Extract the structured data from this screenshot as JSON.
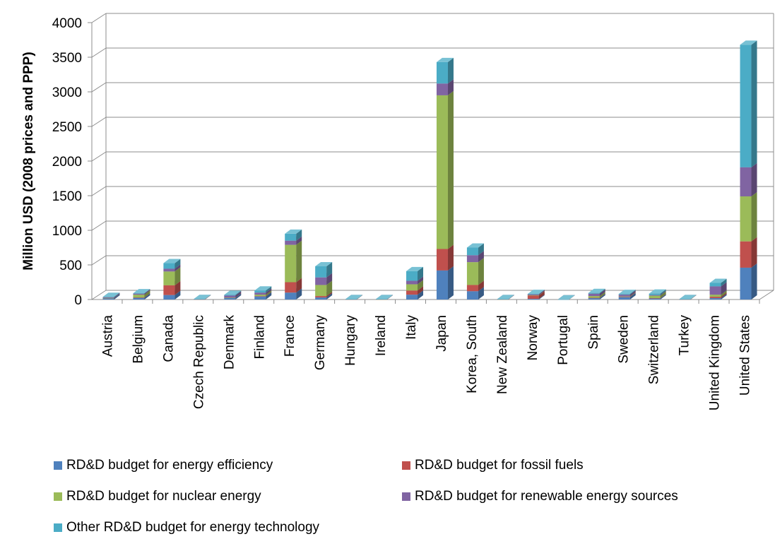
{
  "chart_data": {
    "type": "bar",
    "stacked": true,
    "three_d": true,
    "title": "",
    "xlabel": "",
    "ylabel": "Million USD (2008 prices and PPP)",
    "ylim": [
      0,
      4000
    ],
    "yticks": [
      0,
      500,
      1000,
      1500,
      2000,
      2500,
      3000,
      3500,
      4000
    ],
    "grid": "horizontal",
    "legend_position": "bottom",
    "categories": [
      "Austria",
      "Belgium",
      "Canada",
      "Czech Republic",
      "Denmark",
      "Finland",
      "France",
      "Germany",
      "Hungary",
      "Ireland",
      "Italy",
      "Japan",
      "Korea, South",
      "New Zealand",
      "Norway",
      "Portugal",
      "Spain",
      "Sweden",
      "Switzerland",
      "Turkey",
      "United Kingdom",
      "United States"
    ],
    "series": [
      {
        "name": "RD&D budget for energy efficiency",
        "color": "#4F81BD",
        "values": [
          20,
          25,
          65,
          3,
          25,
          45,
          100,
          30,
          3,
          4,
          70,
          420,
          120,
          3,
          10,
          1,
          20,
          35,
          15,
          3,
          20,
          460
        ]
      },
      {
        "name": "RD&D budget for fossil fuels",
        "color": "#C0504D",
        "values": [
          3,
          5,
          140,
          1,
          2,
          5,
          150,
          20,
          1,
          0,
          60,
          310,
          90,
          1,
          50,
          0,
          5,
          5,
          5,
          1,
          20,
          380
        ]
      },
      {
        "name": "RD&D budget for nuclear energy",
        "color": "#9BBB59",
        "values": [
          0,
          40,
          200,
          1,
          0,
          20,
          540,
          160,
          1,
          0,
          90,
          2220,
          330,
          0,
          3,
          0,
          25,
          5,
          35,
          1,
          30,
          650
        ]
      },
      {
        "name": "RD&D budget for renewable energy sources",
        "color": "#8064A2",
        "values": [
          10,
          15,
          40,
          2,
          30,
          30,
          60,
          110,
          1,
          3,
          50,
          170,
          100,
          3,
          15,
          1,
          35,
          25,
          10,
          1,
          120,
          420
        ]
      },
      {
        "name": "Other RD&D budget for energy technology",
        "color": "#4BACC6",
        "values": [
          5,
          5,
          80,
          1,
          10,
          30,
          100,
          160,
          0,
          0,
          140,
          310,
          110,
          0,
          2,
          0,
          10,
          10,
          20,
          1,
          50,
          1770
        ]
      }
    ]
  }
}
